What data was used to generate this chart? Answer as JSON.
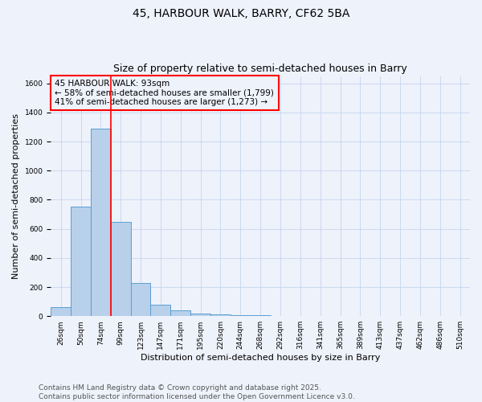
{
  "title": "45, HARBOUR WALK, BARRY, CF62 5BA",
  "subtitle": "Size of property relative to semi-detached houses in Barry",
  "xlabel": "Distribution of semi-detached houses by size in Barry",
  "ylabel": "Number of semi-detached properties",
  "categories": [
    "26sqm",
    "50sqm",
    "74sqm",
    "99sqm",
    "123sqm",
    "147sqm",
    "171sqm",
    "195sqm",
    "220sqm",
    "244sqm",
    "268sqm",
    "292sqm",
    "316sqm",
    "341sqm",
    "365sqm",
    "389sqm",
    "413sqm",
    "437sqm",
    "462sqm",
    "486sqm",
    "510sqm"
  ],
  "values": [
    60,
    750,
    1290,
    650,
    230,
    80,
    40,
    20,
    10,
    8,
    5,
    0,
    0,
    0,
    0,
    0,
    0,
    0,
    0,
    0,
    0
  ],
  "bar_color": "#b8d0ea",
  "bar_edge_color": "#5a9fd4",
  "redline_index": 3,
  "ylim": [
    0,
    1650
  ],
  "yticks": [
    0,
    200,
    400,
    600,
    800,
    1000,
    1200,
    1400,
    1600
  ],
  "annotation_title": "45 HARBOUR WALK: 93sqm",
  "annotation_line1": "← 58% of semi-detached houses are smaller (1,799)",
  "annotation_line2": "41% of semi-detached houses are larger (1,273) →",
  "footnote1": "Contains HM Land Registry data © Crown copyright and database right 2025.",
  "footnote2": "Contains public sector information licensed under the Open Government Licence v3.0.",
  "background_color": "#eef2fb",
  "grid_color": "#c5d5ee",
  "title_fontsize": 10,
  "subtitle_fontsize": 9,
  "axis_label_fontsize": 8,
  "tick_fontsize": 6.5,
  "annotation_fontsize": 7.5,
  "footnote_fontsize": 6.5
}
